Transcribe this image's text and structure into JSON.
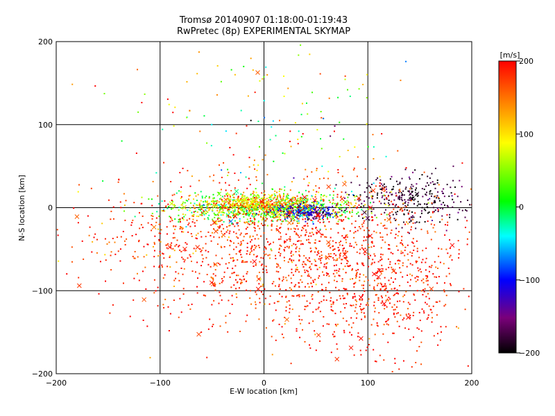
{
  "chart_data": {
    "type": "scatter",
    "title": "Tromsø 20140907 01:18:00-01:19:43",
    "subtitle": "RwPretec (8p) EXPERIMENTAL SKYMAP",
    "xlabel": "E-W location [km]",
    "ylabel": "N-S location [km]",
    "xlim": [
      -200,
      200
    ],
    "ylim": [
      -200,
      200
    ],
    "xticks": [
      -200,
      -100,
      0,
      100,
      200
    ],
    "yticks": [
      -200,
      -100,
      0,
      100,
      200
    ],
    "grid": true,
    "colorbar": {
      "label": "[m/s]",
      "range": [
        -200,
        200
      ],
      "ticks": [
        200,
        100,
        0,
        -100,
        -200
      ],
      "colors": [
        "#000000",
        "#7a007a",
        "#0000ff",
        "#00ffff",
        "#00ff00",
        "#ffff00",
        "#ff8000",
        "#ff0000"
      ]
    },
    "clusters": [
      {
        "cx": 0,
        "cy": 0,
        "sx": 45,
        "sy": 8,
        "n": 900,
        "velocity_mean": 40,
        "velocity_sd": 45
      },
      {
        "cx": -5,
        "cy": 5,
        "sx": 25,
        "sy": 5,
        "n": 350,
        "velocity_mean": 120,
        "velocity_sd": 35
      },
      {
        "cx": 40,
        "cy": -5,
        "sx": 15,
        "sy": 5,
        "n": 200,
        "velocity_mean": -120,
        "velocity_sd": 40
      },
      {
        "cx": 140,
        "cy": 10,
        "sx": 30,
        "sy": 15,
        "n": 300,
        "velocity_mean": -180,
        "velocity_sd": 20
      },
      {
        "cx": 20,
        "cy": -50,
        "sx": 80,
        "sy": 45,
        "n": 1400,
        "velocity_mean": 180,
        "velocity_sd": 25
      },
      {
        "cx": 110,
        "cy": -100,
        "sx": 45,
        "sy": 45,
        "n": 450,
        "velocity_mean": 190,
        "velocity_sd": 15
      },
      {
        "cx": 0,
        "cy": 100,
        "sx": 70,
        "sy": 50,
        "n": 140,
        "velocity_mean": 60,
        "velocity_sd": 90
      },
      {
        "cx": -120,
        "cy": -20,
        "sx": 50,
        "sy": 25,
        "n": 90,
        "velocity_mean": 170,
        "velocity_sd": 40
      }
    ]
  }
}
